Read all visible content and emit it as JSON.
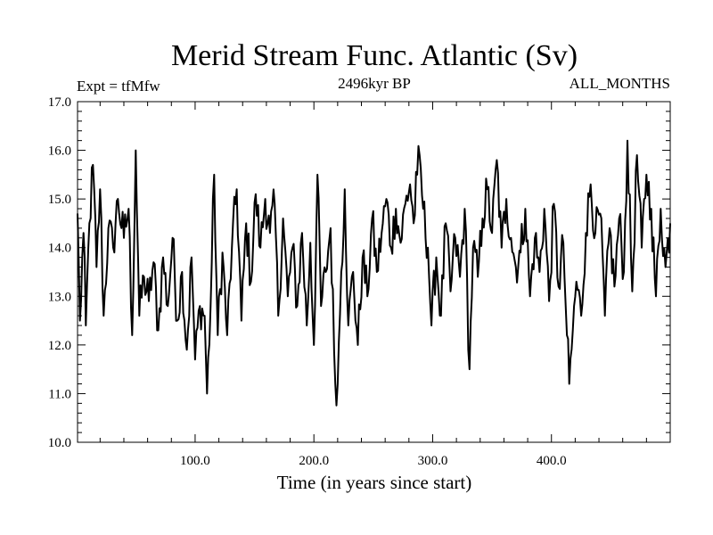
{
  "chart_data": {
    "type": "line",
    "title": "Merid Stream Func. Atlantic (Sv)",
    "subtitle_left": "Expt = tfMfw",
    "subtitle_center": "2496kyr BP",
    "subtitle_right": "ALL_MONTHS",
    "xlabel": "Time (in years since start)",
    "ylabel": "",
    "xlim": [
      1,
      500
    ],
    "ylim": [
      10.0,
      17.0
    ],
    "x_ticks": [
      100,
      200,
      300,
      400
    ],
    "x_tick_labels": [
      "100.0",
      "200.0",
      "300.0",
      "400.0"
    ],
    "y_ticks": [
      10,
      11,
      12,
      13,
      14,
      15,
      16,
      17
    ],
    "y_tick_labels": [
      "10.0",
      "11.0",
      "12.0",
      "13.0",
      "14.0",
      "15.0",
      "16.0",
      "17.0"
    ],
    "series": [
      {
        "name": "Merid Stream Func. Atlantic",
        "anchors": [
          [
            1,
            14.7
          ],
          [
            3,
            12.5
          ],
          [
            6,
            14.3
          ],
          [
            8,
            12.4
          ],
          [
            11,
            14.5
          ],
          [
            14,
            15.7
          ],
          [
            17,
            13.6
          ],
          [
            20,
            15.2
          ],
          [
            23,
            12.6
          ],
          [
            27,
            14.4
          ],
          [
            31,
            14.0
          ],
          [
            35,
            15.0
          ],
          [
            40,
            14.2
          ],
          [
            44,
            14.8
          ],
          [
            47,
            12.2
          ],
          [
            50,
            16.0
          ],
          [
            53,
            12.6
          ],
          [
            57,
            13.4
          ],
          [
            61,
            12.9
          ],
          [
            65,
            13.7
          ],
          [
            69,
            12.3
          ],
          [
            73,
            13.8
          ],
          [
            77,
            12.8
          ],
          [
            81,
            14.2
          ],
          [
            85,
            12.5
          ],
          [
            89,
            13.5
          ],
          [
            93,
            11.9
          ],
          [
            97,
            13.8
          ],
          [
            100,
            11.7
          ],
          [
            104,
            12.8
          ],
          [
            108,
            12.6
          ],
          [
            110,
            11.0
          ],
          [
            113,
            12.8
          ],
          [
            116,
            15.5
          ],
          [
            119,
            12.2
          ],
          [
            123,
            13.9
          ],
          [
            127,
            12.2
          ],
          [
            131,
            14.0
          ],
          [
            135,
            15.2
          ],
          [
            139,
            12.5
          ],
          [
            143,
            14.5
          ],
          [
            147,
            13.3
          ],
          [
            151,
            15.1
          ],
          [
            155,
            14.0
          ],
          [
            159,
            15.0
          ],
          [
            163,
            14.3
          ],
          [
            167,
            14.9
          ],
          [
            170,
            12.6
          ],
          [
            174,
            14.6
          ],
          [
            178,
            13.0
          ],
          [
            182,
            14.0
          ],
          [
            186,
            12.8
          ],
          [
            190,
            14.3
          ],
          [
            194,
            12.4
          ],
          [
            197,
            14.1
          ],
          [
            200,
            12.0
          ],
          [
            203,
            15.5
          ],
          [
            206,
            12.8
          ],
          [
            210,
            13.5
          ],
          [
            214,
            14.4
          ],
          [
            218,
            11.2
          ],
          [
            220,
            11.2
          ],
          [
            223,
            13.5
          ],
          [
            226,
            15.2
          ],
          [
            229,
            12.4
          ],
          [
            233,
            13.5
          ],
          [
            237,
            12.0
          ],
          [
            241,
            13.8
          ],
          [
            245,
            13.0
          ],
          [
            249,
            14.6
          ],
          [
            253,
            13.5
          ],
          [
            257,
            14.3
          ],
          [
            261,
            15.0
          ],
          [
            265,
            14.0
          ],
          [
            269,
            14.8
          ],
          [
            273,
            14.1
          ],
          [
            277,
            14.9
          ],
          [
            281,
            15.3
          ],
          [
            284,
            14.5
          ],
          [
            287,
            15.5
          ],
          [
            289,
            15.9
          ],
          [
            292,
            14.8
          ],
          [
            296,
            14.0
          ],
          [
            299,
            12.4
          ],
          [
            303,
            13.8
          ],
          [
            307,
            12.6
          ],
          [
            311,
            14.5
          ],
          [
            315,
            13.1
          ],
          [
            319,
            14.2
          ],
          [
            323,
            13.4
          ],
          [
            327,
            14.8
          ],
          [
            331,
            11.5
          ],
          [
            334,
            14.0
          ],
          [
            338,
            13.4
          ],
          [
            342,
            14.6
          ],
          [
            346,
            15.2
          ],
          [
            350,
            14.3
          ],
          [
            354,
            15.8
          ],
          [
            358,
            14.0
          ],
          [
            362,
            15.0
          ],
          [
            366,
            14.2
          ],
          [
            370,
            13.6
          ],
          [
            374,
            13.9
          ],
          [
            378,
            14.8
          ],
          [
            382,
            13.0
          ],
          [
            386,
            14.2
          ],
          [
            390,
            13.5
          ],
          [
            394,
            14.8
          ],
          [
            398,
            12.9
          ],
          [
            402,
            14.9
          ],
          [
            406,
            13.2
          ],
          [
            410,
            14.1
          ],
          [
            413,
            12.2
          ],
          [
            415,
            11.2
          ],
          [
            418,
            12.3
          ],
          [
            421,
            13.3
          ],
          [
            425,
            12.6
          ],
          [
            429,
            14.3
          ],
          [
            433,
            15.3
          ],
          [
            437,
            14.3
          ],
          [
            441,
            14.7
          ],
          [
            445,
            12.6
          ],
          [
            449,
            14.4
          ],
          [
            453,
            13.2
          ],
          [
            457,
            14.6
          ],
          [
            461,
            13.5
          ],
          [
            464,
            16.2
          ],
          [
            468,
            13.1
          ],
          [
            472,
            15.9
          ],
          [
            476,
            14.0
          ],
          [
            480,
            15.5
          ],
          [
            484,
            14.8
          ],
          [
            488,
            13.0
          ],
          [
            492,
            14.8
          ],
          [
            496,
            13.6
          ],
          [
            500,
            14.5
          ]
        ]
      }
    ]
  }
}
